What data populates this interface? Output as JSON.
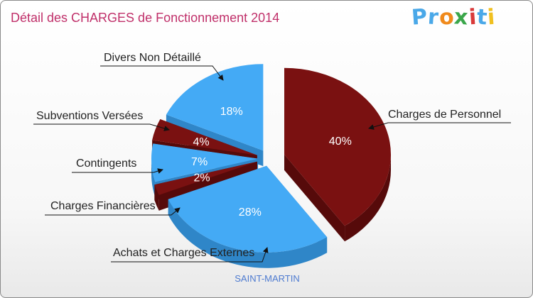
{
  "title": "Détail des CHARGES de Fonctionnement 2014",
  "logo": {
    "text": "Proxiti",
    "letter_colors": [
      "#4aa8e8",
      "#4aa8e8",
      "#f08a1c",
      "#3aa64a",
      "#d93a3a",
      "#4aa8e8",
      "#f0c020"
    ]
  },
  "commune": "SAINT-MARTIN",
  "colors": {
    "blue": "#44aaf5",
    "blue_side": "#2f86c8",
    "red": "#7a1111",
    "red_side": "#560a0a",
    "title": "#c0306a"
  },
  "chart_data": {
    "type": "pie",
    "title": "Détail des CHARGES de Fonctionnement 2014",
    "slices": [
      {
        "label": "Charges de Personnel",
        "value": 40,
        "pct_label": "40%",
        "color": "red"
      },
      {
        "label": "Achats et Charges Externes",
        "value": 28,
        "pct_label": "28%",
        "color": "blue"
      },
      {
        "label": "Charges Financières",
        "value": 2,
        "pct_label": "2%",
        "color": "red"
      },
      {
        "label": "Contingents",
        "value": 7,
        "pct_label": "7%",
        "color": "blue"
      },
      {
        "label": "Subventions Versées",
        "value": 4,
        "pct_label": "4%",
        "color": "red"
      },
      {
        "label": "Divers Non Détaillé",
        "value": 18,
        "pct_label": "18%",
        "color": "blue"
      }
    ]
  }
}
